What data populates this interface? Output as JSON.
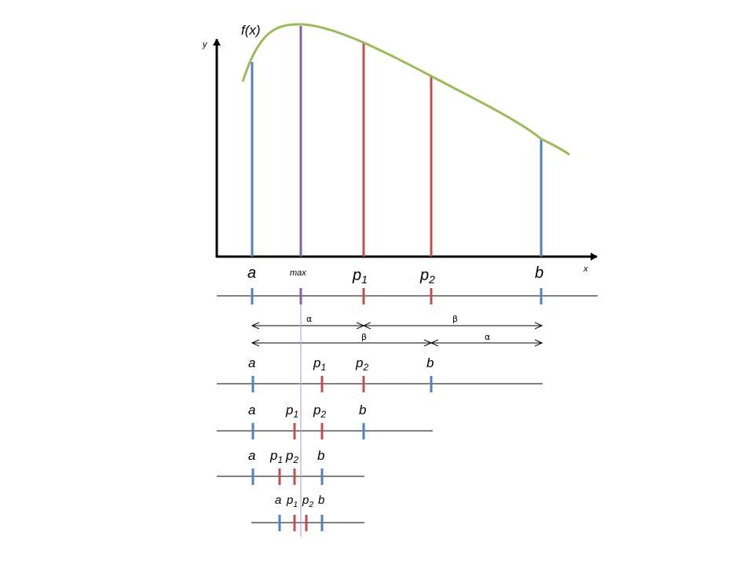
{
  "axes": {
    "y_label": "y",
    "x_label": "x"
  },
  "curve_label": "f(x)",
  "top_labels": {
    "a": "a",
    "max": "max",
    "p1_main": "p",
    "p1_sub": "1",
    "p2_main": "p",
    "p2_sub": "2",
    "b": "b"
  },
  "interval_labels": {
    "alpha_upper": "α",
    "beta_upper": "β",
    "beta_lower": "β",
    "alpha_lower": "α"
  },
  "row1": {
    "a": "a",
    "p1_main": "p",
    "p1_sub": "1",
    "p2_main": "p",
    "p2_sub": "2",
    "b": "b"
  },
  "row2": {
    "a": "a",
    "p1_main": "p",
    "p1_sub": "1",
    "p2_main": "p",
    "p2_sub": "2",
    "b": "b"
  },
  "row3": {
    "a": "a",
    "p1_main": "p",
    "p1_sub": "1",
    "p2_main": "p",
    "p2_sub": "2",
    "b": "b"
  },
  "row4": {
    "a": "a",
    "p1_main": "p",
    "p1_sub": "1",
    "p2_main": "p",
    "p2_sub": "2",
    "b": "b"
  },
  "colors": {
    "curve": "#9bbb59",
    "endpoint": "#4f81bd",
    "probe": "#c0504d",
    "maximum": "#8064a2",
    "axis": "#000000",
    "guide": "#b4a7d6"
  }
}
